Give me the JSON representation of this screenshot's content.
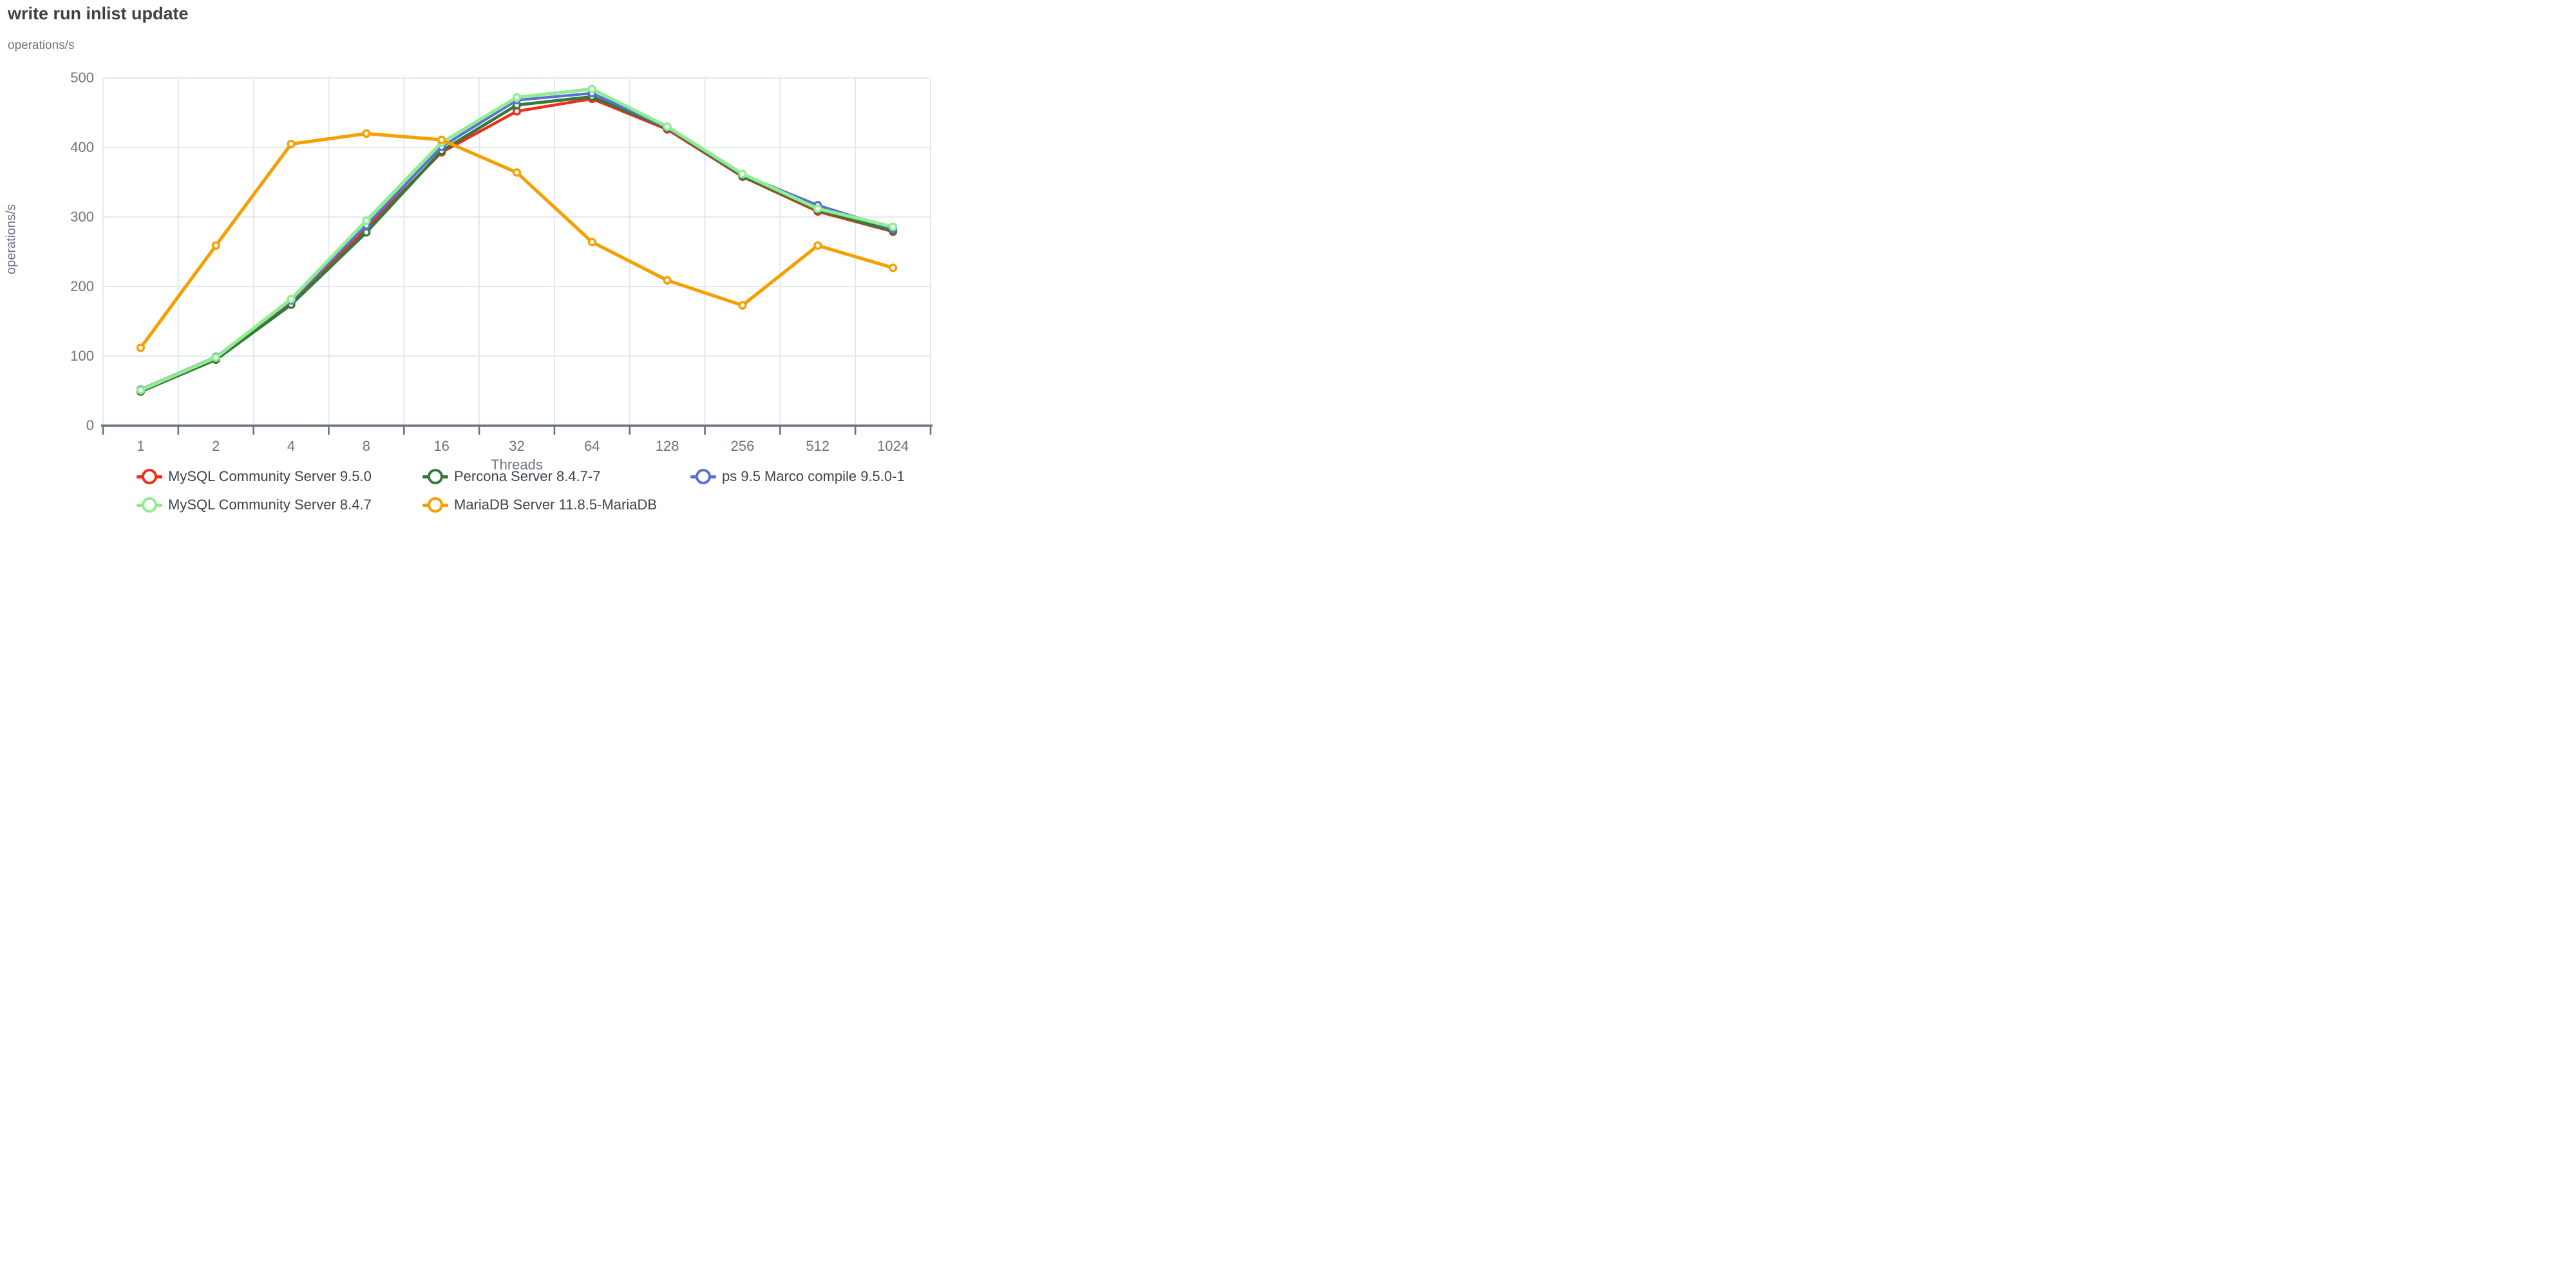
{
  "chart": {
    "title": "write run inlist update",
    "y_unit": "operations/s",
    "x_label": "Threads"
  },
  "chart_data": {
    "type": "line",
    "title": "write run inlist update",
    "xlabel": "Threads",
    "ylabel": "operations/s",
    "x_scale": "categorical (powers of 2)",
    "categories": [
      1,
      2,
      4,
      8,
      16,
      32,
      64,
      128,
      256,
      512,
      1024
    ],
    "ylim": [
      0,
      500
    ],
    "y_ticks": [
      0,
      100,
      200,
      300,
      400,
      500
    ],
    "grid": true,
    "legend_position": "bottom",
    "series": [
      {
        "name": "MySQL Community Server 9.5.0",
        "color": "#f22c1a",
        "values": [
          50,
          96,
          177,
          284,
          393,
          452,
          470,
          426,
          358,
          308,
          279
        ]
      },
      {
        "name": "Percona Server 8.4.7-7",
        "color": "#35793b",
        "values": [
          49,
          95,
          174,
          278,
          395,
          461,
          473,
          428,
          359,
          310,
          280
        ]
      },
      {
        "name": "ps 9.5 Marco compile 9.5.0-1",
        "color": "#5b70d6",
        "values": [
          52,
          99,
          180,
          288,
          401,
          468,
          478,
          429,
          361,
          317,
          283
        ]
      },
      {
        "name": "MySQL Community Server 8.4.7",
        "color": "#90ee90",
        "values": [
          51,
          98,
          182,
          295,
          407,
          472,
          484,
          430,
          362,
          312,
          286
        ]
      },
      {
        "name": "MariaDB Server 11.8.5-MariaDB",
        "color": "#f4a000",
        "values": [
          112,
          259,
          405,
          420,
          411,
          364,
          264,
          209,
          173,
          259,
          227
        ]
      }
    ]
  },
  "style": {
    "grid_color": "#e0e5f2",
    "axis_color": "#6b7280",
    "tick_label_color": "#6d7480",
    "title_color": "#3a4148",
    "legend_text_color": "#3e444b",
    "background": "#ffffff"
  }
}
